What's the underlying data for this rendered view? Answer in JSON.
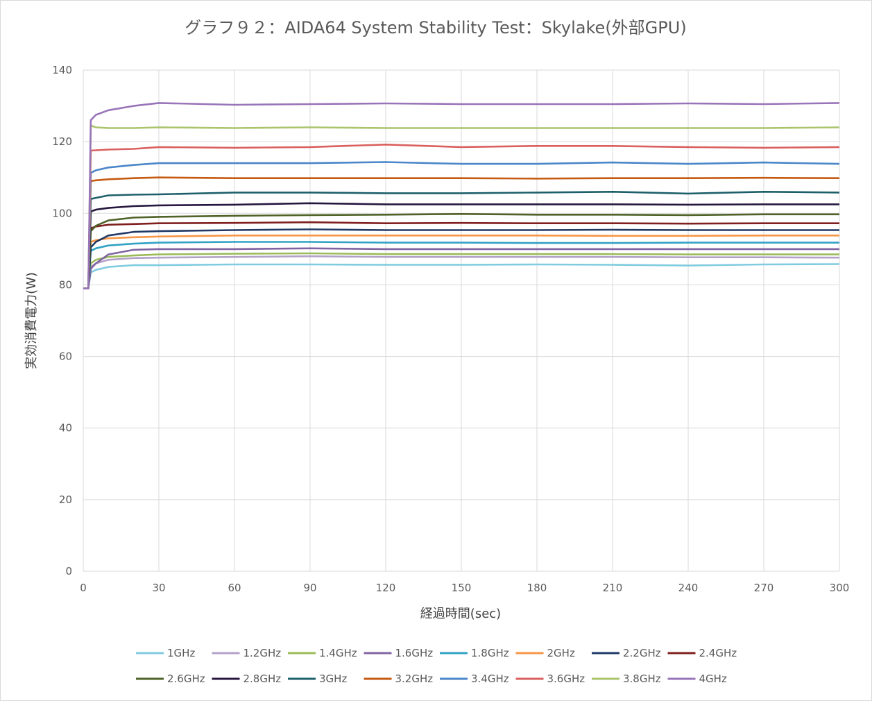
{
  "chart_data": {
    "type": "line",
    "title": "グラフ９２：AIDA64 System Stability Test：Skylake(外部GPU)",
    "xlabel": "経過時間(sec)",
    "ylabel": "実効消費電力(W)",
    "xlim": [
      0,
      300
    ],
    "ylim": [
      0,
      140
    ],
    "xticks": [
      "0",
      "30",
      "60",
      "90",
      "120",
      "150",
      "180",
      "210",
      "240",
      "270",
      "300"
    ],
    "yticks": [
      "0",
      "20",
      "40",
      "60",
      "80",
      "100",
      "120",
      "140"
    ],
    "grid": "vertical and horizontal",
    "legend_position": "bottom",
    "x": [
      0,
      2,
      3,
      5,
      10,
      20,
      30,
      60,
      90,
      120,
      150,
      180,
      210,
      240,
      270,
      300
    ],
    "series": [
      {
        "name": "1GHz",
        "color": "#7fcbe0",
        "values": [
          79,
          79,
          83.5,
          84.2,
          85.0,
          85.5,
          85.5,
          85.7,
          85.7,
          85.6,
          85.6,
          85.7,
          85.6,
          85.4,
          85.7,
          85.8
        ]
      },
      {
        "name": "1.2GHz",
        "color": "#b3a2c7",
        "values": [
          79,
          79,
          85.0,
          86.0,
          87.0,
          87.5,
          87.6,
          87.8,
          88.0,
          87.8,
          87.8,
          87.8,
          87.8,
          87.7,
          87.7,
          87.6
        ]
      },
      {
        "name": "1.4GHz",
        "color": "#9bbb59",
        "values": [
          79,
          79,
          86.0,
          87.0,
          87.8,
          88.2,
          88.5,
          88.7,
          88.8,
          88.6,
          88.6,
          88.6,
          88.6,
          88.5,
          88.5,
          88.5
        ]
      },
      {
        "name": "1.6GHz",
        "color": "#8064a2",
        "values": [
          79,
          79,
          84.5,
          86.0,
          88.5,
          89.8,
          90.0,
          90.0,
          90.2,
          90.0,
          90.0,
          90.0,
          90.0,
          90.0,
          90.0,
          90.0
        ]
      },
      {
        "name": "1.8GHz",
        "color": "#31a2c4",
        "values": [
          79,
          79,
          89.5,
          90.2,
          91.0,
          91.5,
          91.8,
          92.0,
          92.0,
          91.8,
          91.8,
          91.7,
          91.7,
          91.8,
          91.8,
          91.8
        ]
      },
      {
        "name": "2GHz",
        "color": "#f79646",
        "values": [
          79,
          79,
          92.0,
          92.5,
          93.0,
          93.3,
          93.5,
          93.8,
          93.8,
          93.8,
          93.8,
          93.8,
          93.7,
          93.7,
          93.8,
          93.8
        ]
      },
      {
        "name": "2.2GHz",
        "color": "#1f3864",
        "values": [
          79,
          79,
          90.5,
          92.0,
          93.8,
          94.8,
          95.0,
          95.3,
          95.5,
          95.3,
          95.3,
          95.3,
          95.4,
          95.3,
          95.3,
          95.3
        ]
      },
      {
        "name": "2.4GHz",
        "color": "#7f1f1f",
        "values": [
          79,
          79,
          95.8,
          96.3,
          96.8,
          97.0,
          97.2,
          97.3,
          97.5,
          97.2,
          97.3,
          97.2,
          97.2,
          97.1,
          97.2,
          97.2
        ]
      },
      {
        "name": "2.6GHz",
        "color": "#4f6228",
        "values": [
          79,
          79,
          95.0,
          96.5,
          98.0,
          98.8,
          99.0,
          99.3,
          99.5,
          99.6,
          99.8,
          99.6,
          99.6,
          99.5,
          99.7,
          99.7
        ]
      },
      {
        "name": "2.8GHz",
        "color": "#27173f",
        "values": [
          79,
          79,
          100.5,
          101.0,
          101.5,
          102.0,
          102.2,
          102.4,
          102.8,
          102.5,
          102.5,
          102.5,
          102.5,
          102.4,
          102.5,
          102.5
        ]
      },
      {
        "name": "3GHz",
        "color": "#1d5f6a",
        "values": [
          79,
          79,
          104.0,
          104.3,
          105.0,
          105.2,
          105.3,
          105.8,
          105.8,
          105.6,
          105.6,
          105.8,
          106.0,
          105.5,
          106.0,
          105.8
        ]
      },
      {
        "name": "3.2GHz",
        "color": "#c55a11",
        "values": [
          79,
          79,
          109.0,
          109.2,
          109.5,
          109.8,
          110.0,
          109.8,
          109.8,
          109.8,
          109.8,
          109.7,
          109.8,
          109.8,
          109.9,
          109.8
        ]
      },
      {
        "name": "3.4GHz",
        "color": "#4a86c8",
        "values": [
          79,
          79,
          111.3,
          112.0,
          112.8,
          113.5,
          114.0,
          114.0,
          114.0,
          114.3,
          113.8,
          113.8,
          114.2,
          113.8,
          114.2,
          113.8
        ]
      },
      {
        "name": "3.6GHz",
        "color": "#d9605e",
        "values": [
          79,
          79,
          117.5,
          117.6,
          117.8,
          118.0,
          118.5,
          118.3,
          118.5,
          119.2,
          118.5,
          118.8,
          118.8,
          118.5,
          118.3,
          118.5
        ]
      },
      {
        "name": "3.8GHz",
        "color": "#a9c46a",
        "values": [
          79,
          79,
          124.5,
          124.0,
          123.8,
          123.8,
          124.0,
          123.8,
          124.0,
          123.8,
          123.8,
          123.8,
          123.8,
          123.8,
          123.8,
          124.0
        ]
      },
      {
        "name": "4GHz",
        "color": "#9874b8",
        "values": [
          79,
          79,
          126.0,
          127.5,
          128.8,
          130.0,
          130.8,
          130.3,
          130.5,
          130.7,
          130.5,
          130.5,
          130.5,
          130.7,
          130.5,
          130.8
        ]
      }
    ]
  }
}
